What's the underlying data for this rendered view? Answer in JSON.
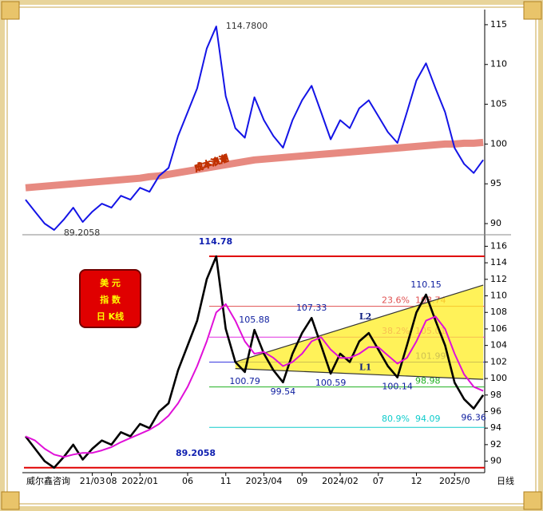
{
  "chart_data": [
    {
      "type": "line",
      "annotation": "成本浪潮",
      "series": [
        {
          "color": "#d42a1a",
          "values": [
            94.5,
            94.6,
            94.7,
            94.8,
            94.9,
            95.0,
            95.1,
            95.2,
            95.3,
            95.4,
            95.5,
            95.6,
            95.7,
            95.9,
            96.0,
            96.2,
            96.4,
            96.6,
            96.8,
            97.0,
            97.2,
            97.4,
            97.6,
            97.8,
            98.0,
            98.1,
            98.2,
            98.3,
            98.4,
            98.5,
            98.6,
            98.7,
            98.8,
            98.9,
            99.0,
            99.1,
            99.2,
            99.3,
            99.4,
            99.5,
            99.6,
            99.7,
            99.8,
            99.9,
            100.0,
            100.0,
            100.1,
            100.1,
            100.2
          ]
        },
        {
          "color": "#1414e6",
          "values": [
            93,
            91.5,
            90,
            89.2058,
            90.5,
            92,
            90.2,
            91.5,
            92.5,
            92,
            93.5,
            93,
            94.5,
            94,
            96,
            97,
            101,
            104,
            107,
            112,
            114.78,
            106,
            102,
            100.79,
            105.88,
            103,
            101,
            99.54,
            103,
            105.5,
            107.33,
            104,
            100.59,
            103,
            102,
            104.5,
            105.5,
            103.5,
            101.5,
            100.14,
            104,
            108,
            110.15,
            107,
            104,
            99.5,
            97.5,
            96.36,
            98
          ],
          "value_labels": [
            null,
            null,
            null,
            "89.2058",
            null,
            null,
            null,
            null,
            null,
            null,
            null,
            null,
            null,
            null,
            null,
            null,
            null,
            null,
            null,
            null,
            "114.7800",
            null,
            null,
            null,
            null,
            null,
            null,
            null,
            null,
            null,
            null,
            null,
            null,
            null,
            null,
            null,
            null,
            null,
            null,
            null,
            null,
            null,
            null,
            null,
            null,
            null,
            null,
            null,
            null
          ]
        }
      ],
      "ylim": [
        88.8,
        117.1
      ],
      "yticks": [
        90,
        95,
        100,
        105,
        110,
        115
      ]
    },
    {
      "type": "line",
      "title_lines": [
        "美 元",
        "指 数",
        "日 K线"
      ],
      "source": "威尔鑫咨询",
      "period": "日线",
      "categories": [
        null,
        null,
        null,
        null,
        null,
        null,
        null,
        "21/03",
        null,
        "08",
        null,
        null,
        "2022/01",
        null,
        null,
        null,
        null,
        "06",
        null,
        null,
        null,
        "11",
        null,
        null,
        null,
        "2023/04",
        null,
        null,
        null,
        "09",
        null,
        null,
        null,
        "2024/02",
        null,
        null,
        null,
        "07",
        null,
        null,
        null,
        "12",
        null,
        null,
        null,
        "2025/0",
        null,
        null,
        null
      ],
      "series": [
        {
          "color": "#000000",
          "values": [
            93,
            91.5,
            90,
            89.2058,
            90.5,
            92,
            90.2,
            91.5,
            92.5,
            92,
            93.5,
            93,
            94.5,
            94,
            96,
            97,
            101,
            104,
            107,
            112,
            114.78,
            106,
            102,
            100.79,
            105.88,
            103,
            101,
            99.54,
            103,
            105.5,
            107.33,
            104,
            100.59,
            103,
            102,
            104.5,
            105.5,
            103.5,
            101.5,
            100.14,
            104,
            108,
            110.15,
            107,
            104,
            99.5,
            97.5,
            96.36,
            98
          ],
          "value_labels": [
            null,
            null,
            null,
            null,
            null,
            null,
            null,
            null,
            null,
            null,
            null,
            null,
            null,
            null,
            null,
            null,
            null,
            null,
            null,
            null,
            null,
            null,
            null,
            "100.79",
            "105.88",
            null,
            null,
            "99.54",
            null,
            null,
            "107.33",
            null,
            "100.59",
            null,
            null,
            null,
            null,
            null,
            null,
            "100.14",
            null,
            null,
            "110.15",
            null,
            null,
            null,
            null,
            "96.36",
            null
          ]
        },
        {
          "color": "#e010d8",
          "values": [
            93,
            92.5,
            91.5,
            90.8,
            90.5,
            90.8,
            91,
            91,
            91.3,
            91.7,
            92.3,
            92.8,
            93.3,
            93.8,
            94.5,
            95.5,
            97,
            99,
            101.5,
            104.5,
            108,
            109,
            107,
            104.5,
            103,
            103.2,
            102.5,
            101.5,
            102,
            103,
            104.5,
            105,
            103.5,
            102.5,
            102.5,
            103,
            103.8,
            103.8,
            102.8,
            101.8,
            102.5,
            104.5,
            107,
            107.5,
            106,
            103,
            100.5,
            99,
            98.5
          ]
        }
      ],
      "levels": [
        {
          "value": 114.78,
          "color": "#e00000"
        },
        {
          "value": 108.74,
          "pct": "23.6%",
          "color": "#e05050"
        },
        {
          "value": 105.01,
          "pct": "38.2%",
          "color": "#e030e0"
        },
        {
          "value": 101.99,
          "color": "#3a3ae0"
        },
        {
          "value": 98.98,
          "color": "#20b020"
        },
        {
          "value": 94.09,
          "pct": "80.9%",
          "color": "#10cccc"
        },
        {
          "value": 89.2058,
          "color": "#e00000"
        }
      ],
      "trendlines": [
        {
          "label": "L2",
          "start": [
            22,
            102
          ],
          "end": [
            48,
            111.3
          ]
        },
        {
          "label": "L1",
          "start": [
            22,
            101.2
          ],
          "end": [
            48,
            99.9
          ]
        }
      ],
      "ylim": [
        88.8,
        117.2
      ],
      "yticks": [
        90,
        92,
        94,
        96,
        98,
        100,
        102,
        104,
        106,
        108,
        110,
        112,
        114,
        116
      ]
    }
  ]
}
